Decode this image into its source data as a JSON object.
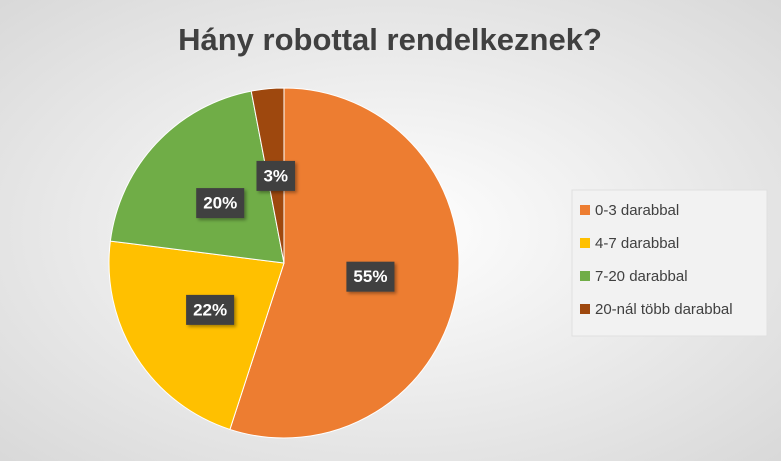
{
  "chart_data": {
    "type": "pie",
    "title": "Hány robottal rendelkeznek?",
    "categories": [
      "0-3 darabbal",
      "4-7 darabbal",
      "7-20 darabbal",
      "20-nál több darabbal"
    ],
    "values": [
      55,
      22,
      20,
      3
    ],
    "value_labels": [
      "55%",
      "22%",
      "20%",
      "3%"
    ],
    "colors": [
      "#ED7D31",
      "#FFC000",
      "#70AD47",
      "#9E480E"
    ],
    "legend": "right"
  }
}
